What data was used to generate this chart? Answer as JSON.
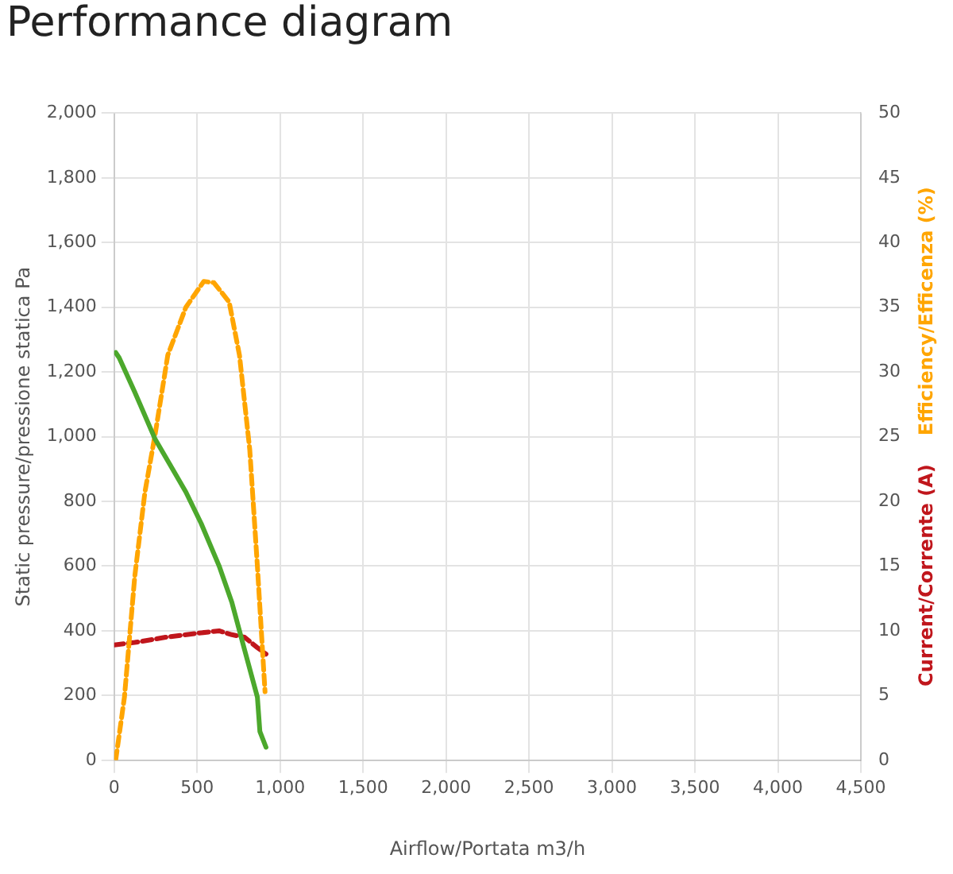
{
  "chart_data": {
    "type": "line",
    "title": "Performance diagram",
    "xlabel": "Airflow/Portata m3/h",
    "ylabel": "Static pressure/pressione statica Pa",
    "y2label": "Efficiency/Efficenza (%)",
    "y3label": "Current/Corrente (A)",
    "xlim": [
      0,
      4500
    ],
    "xticks": [
      0,
      500,
      {
        "value": 1000,
        "label": "1,000"
      },
      {
        "value": 1500,
        "label": "1,500"
      },
      {
        "value": 2000,
        "label": "2,000"
      },
      {
        "value": 2500,
        "label": "2,500"
      },
      {
        "value": 3000,
        "label": "3,000"
      },
      {
        "value": 3500,
        "label": "3,500"
      },
      {
        "value": 4000,
        "label": "4,000"
      },
      {
        "value": 4500,
        "label": "4,500"
      }
    ],
    "ylim": [
      0,
      2000
    ],
    "yticks": [
      0,
      200,
      400,
      600,
      800,
      {
        "value": 1000,
        "label": "1,000"
      },
      {
        "value": 1200,
        "label": "1,200"
      },
      {
        "value": 1400,
        "label": "1,400"
      },
      {
        "value": 1600,
        "label": "1,600"
      },
      {
        "value": 1800,
        "label": "1,800"
      },
      {
        "value": 2000,
        "label": "2,000"
      }
    ],
    "y2lim": [
      0,
      50
    ],
    "y2ticks": [
      0,
      5,
      10,
      15,
      20,
      25,
      30,
      35,
      40,
      45,
      50
    ],
    "grid": true,
    "legend": false,
    "marker": "none",
    "series": [
      {
        "color": "#4ca82c",
        "line_style": "solid",
        "x": [
          9,
          30,
          124,
          247,
          339,
          432,
          524,
          632,
          709,
          786,
          863,
          878,
          915
        ],
        "values": [
          1260,
          1244,
          1138,
          992,
          911,
          829,
          732,
          601,
          488,
          341,
          195,
          89,
          40
        ]
      },
      {
        "color": "#ffa500",
        "line_style": "dashed",
        "axis": "y2",
        "x": [
          9,
          62,
          124,
          185,
          247,
          323,
          432,
          540,
          601,
          693,
          755,
          817,
          863,
          909
        ],
        "values": [
          0,
          4.9,
          14.2,
          20.7,
          25.2,
          31.3,
          35,
          37,
          36.9,
          35.4,
          31.3,
          24,
          15,
          5.3
        ]
      },
      {
        "color": "#c0161c",
        "line_style": "dashed",
        "axis": "y2",
        "x": [
          0,
          124,
          309,
          493,
          632,
          709,
          786,
          863,
          915
        ],
        "values": [
          8.9,
          9.1,
          9.5,
          9.8,
          10,
          9.7,
          9.5,
          8.7,
          8.2
        ]
      }
    ]
  }
}
